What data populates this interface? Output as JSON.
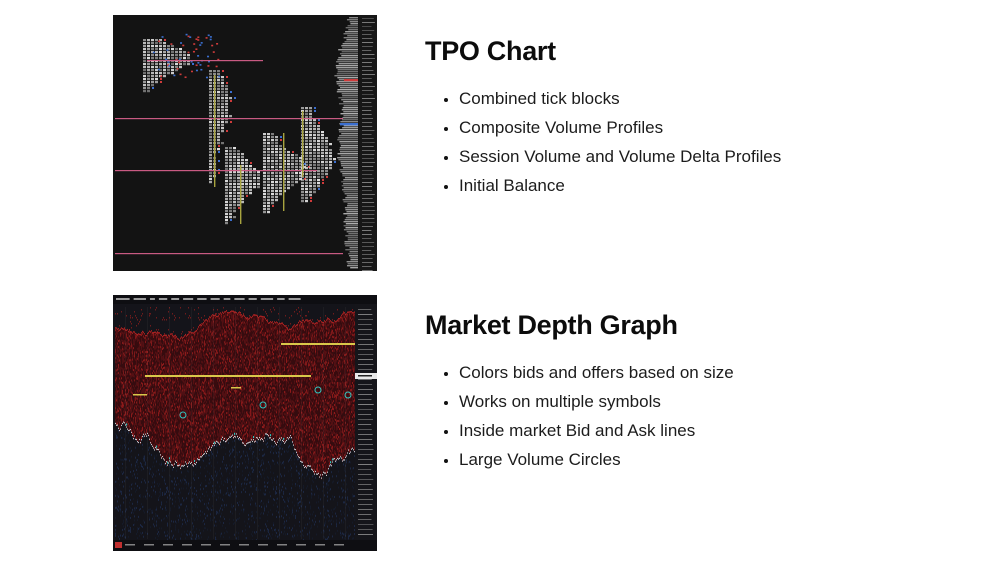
{
  "sections": [
    {
      "id": "tpo",
      "heading": "TPO Chart",
      "bullets": [
        "Combined tick blocks",
        "Composite Volume Profiles",
        "Session Volume and Volume Delta Profiles",
        "Initial Balance"
      ]
    },
    {
      "id": "market-depth",
      "heading": "Market Depth Graph",
      "bullets": [
        "Colors bids and offers based on size",
        "Works on multiple symbols",
        "Inside market Bid and Ask lines",
        "Large Volume Circles"
      ]
    }
  ],
  "charts": {
    "tpo": {
      "label": "tpo-chart-screenshot",
      "colors": {
        "background": "#131313",
        "axis_strip": "#171717",
        "profile_gray": "#dedede",
        "pink_line": "#c85a82",
        "yellow_line": "#a8a43f",
        "red_tick": "#cf3b3b",
        "blue_tick": "#3b6fd0"
      }
    },
    "market_depth": {
      "label": "market-depth-screenshot",
      "colors": {
        "background": "#14141a",
        "offers_red": "#5a1013",
        "offers_bright": "#8f1a1a",
        "offers_dark": "#3c0b0e",
        "top_edge_red": "#a32222",
        "bids_dark_blue": "#1c2742",
        "boundary": "#d7dce1",
        "yellow_order": "#d9c84a",
        "teal_mark": "#2fc6c0",
        "axis_strip": "#15151a",
        "status_red": "#c03030"
      }
    }
  }
}
